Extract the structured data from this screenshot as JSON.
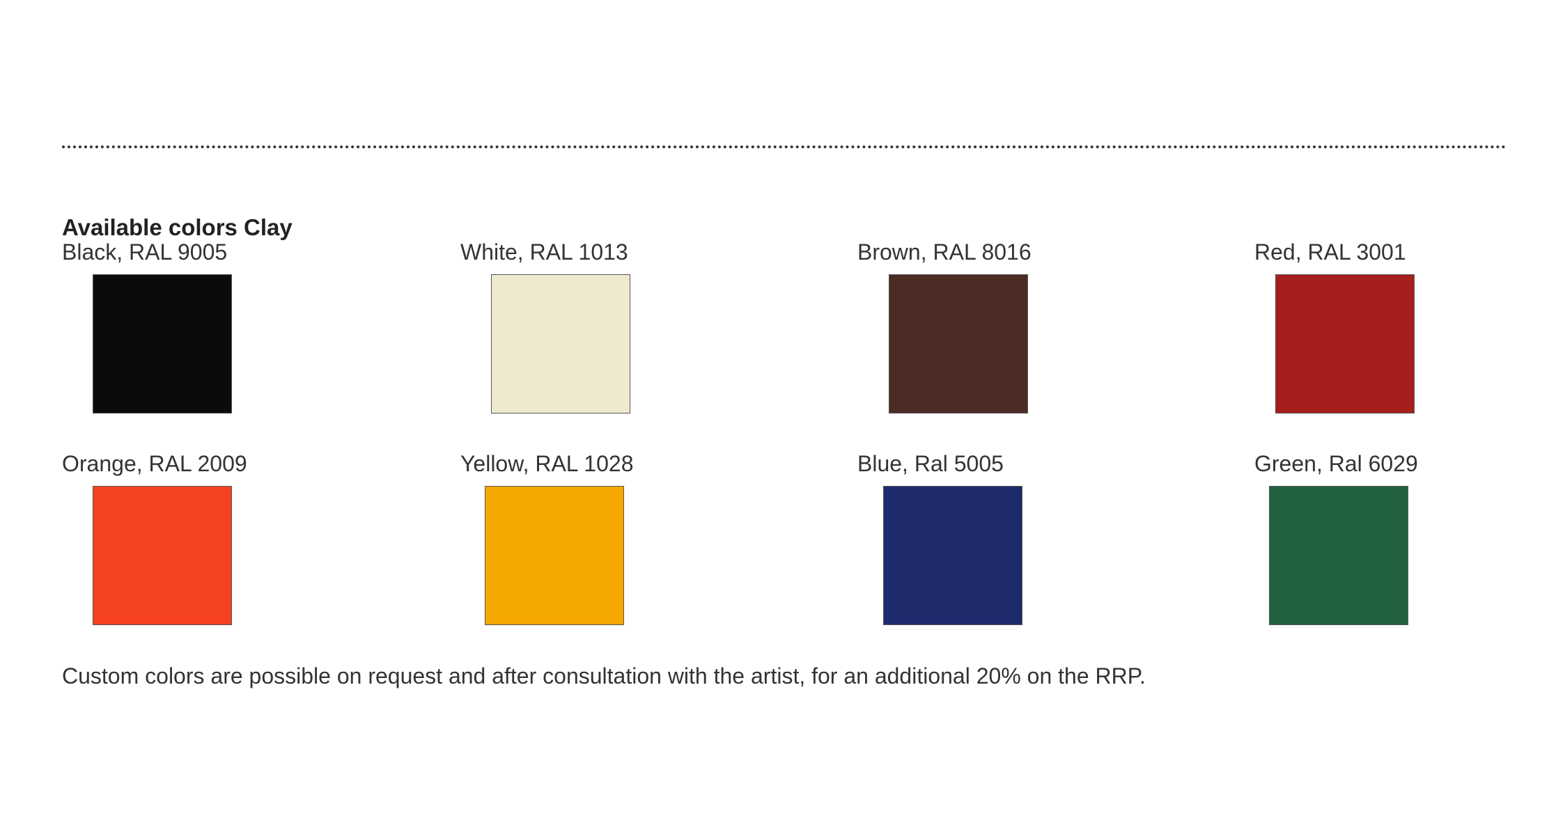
{
  "heading": "Available colors Clay",
  "colors": [
    {
      "label": "Black, RAL 9005",
      "color": "#0b0b0b"
    },
    {
      "label": "White, RAL 1013",
      "color": "#efe9cf"
    },
    {
      "label": "Brown, RAL 8016",
      "color": "#4b2c25"
    },
    {
      "label": "Red, RAL 3001",
      "color": "#a51f1c"
    },
    {
      "label": "Orange, RAL 2009",
      "color": "#f54222"
    },
    {
      "label": "Yellow, RAL 1028",
      "color": "#f4a800"
    },
    {
      "label": "Blue, Ral 5005",
      "color": "#1f2a6c"
    },
    {
      "label": "Green, Ral 6029",
      "color": "#226140"
    }
  ],
  "footer": "Custom colors are possible on request and after consultation with the artist, for an additional 20% on the RRP."
}
